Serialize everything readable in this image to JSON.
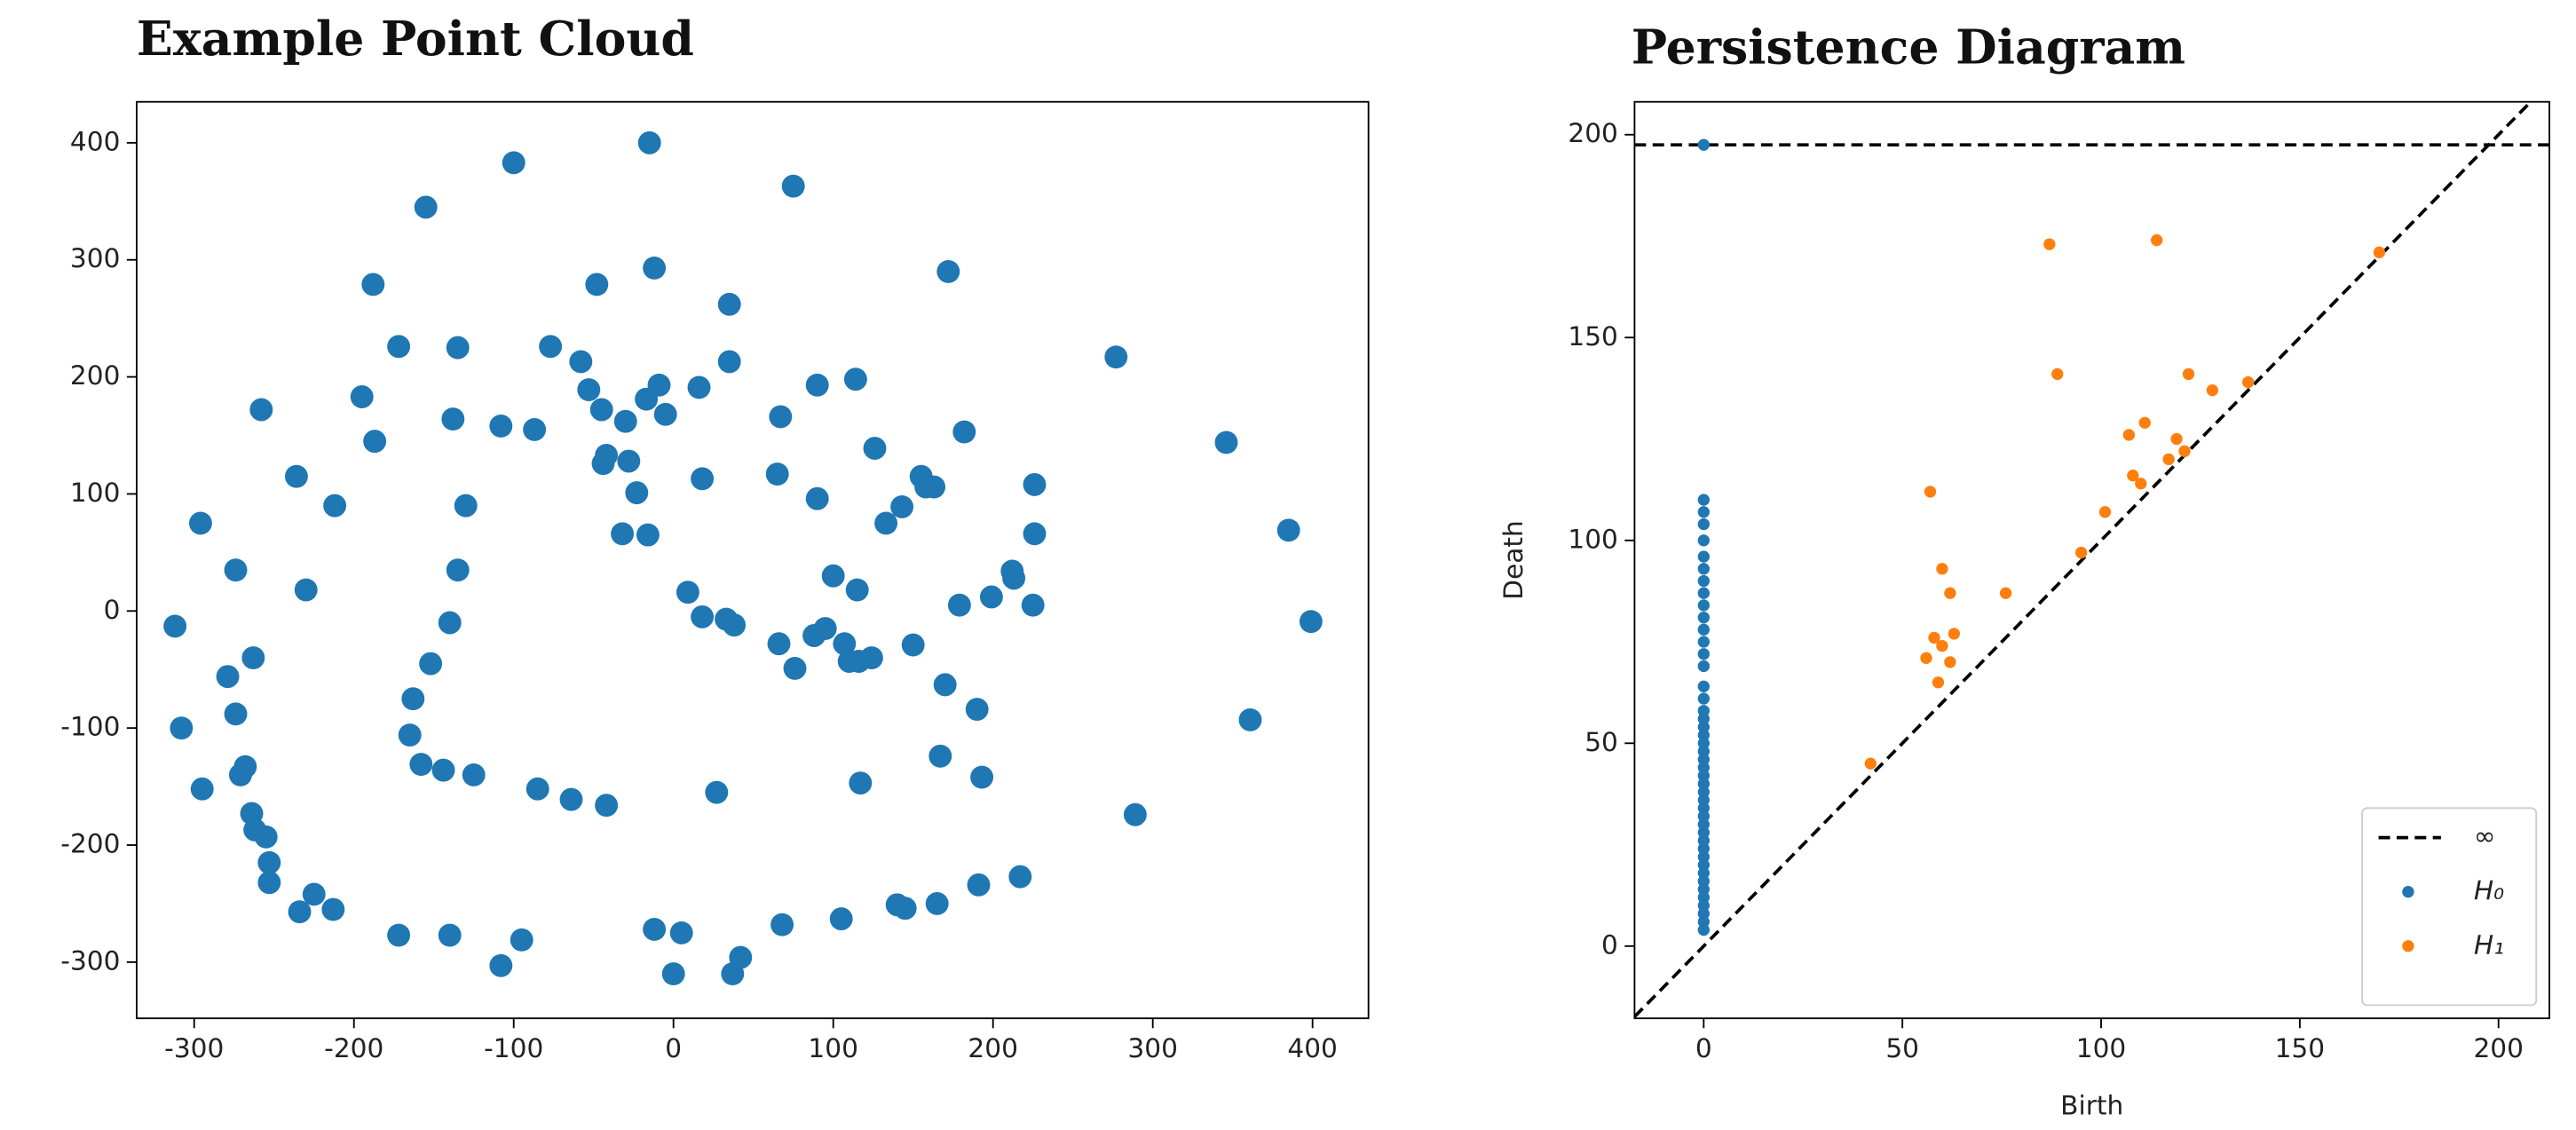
{
  "chart_data": [
    {
      "type": "scatter",
      "title": "Example Point Cloud",
      "color": "#1f77b4",
      "xlim": [
        -336,
        435
      ],
      "ylim": [
        -348,
        435
      ],
      "xticks": [
        -300,
        -200,
        -100,
        0,
        100,
        200,
        300,
        400
      ],
      "yticks": [
        -300,
        -200,
        -100,
        0,
        100,
        200,
        300,
        400
      ],
      "x": [
        -296,
        -312,
        -308,
        -295,
        -274,
        -279,
        -274,
        -271,
        -268,
        -264,
        -262,
        -255,
        -253,
        -253,
        -263,
        -258,
        -236,
        -230,
        -225,
        -234,
        -213,
        -212,
        -195,
        -187,
        -188,
        -172,
        -172,
        -155,
        -165,
        -163,
        -158,
        -152,
        -144,
        -140,
        -138,
        -135,
        -135,
        -130,
        -140,
        -125,
        -108,
        -108,
        -100,
        -95,
        -87,
        -85,
        -77,
        -64,
        -58,
        -53,
        -48,
        -45,
        -44,
        -42,
        -42,
        -32,
        -30,
        -28,
        -23,
        -15,
        -17,
        -16,
        -12,
        -9,
        -12,
        -5,
        0,
        5,
        9,
        16,
        18,
        18,
        27,
        33,
        35,
        35,
        38,
        37,
        42,
        65,
        66,
        67,
        68,
        75,
        76,
        88,
        90,
        90,
        95,
        100,
        105,
        107,
        110,
        114,
        115,
        116,
        117,
        124,
        126,
        133,
        140,
        143,
        145,
        150,
        155,
        158,
        163,
        165,
        167,
        170,
        172,
        179,
        182,
        190,
        191,
        193,
        199,
        212,
        213,
        217,
        226,
        226,
        225,
        277,
        289,
        346,
        361,
        385,
        399
      ],
      "values": [
        75,
        -13,
        -100,
        -152,
        35,
        -56,
        -88,
        -140,
        -133,
        -173,
        -187,
        -193,
        -215,
        -232,
        -40,
        172,
        115,
        18,
        -242,
        -257,
        -255,
        90,
        183,
        145,
        279,
        226,
        -277,
        345,
        -106,
        -75,
        -131,
        -45,
        -136,
        -10,
        164,
        35,
        225,
        90,
        -277,
        -140,
        158,
        -303,
        383,
        -281,
        155,
        -152,
        226,
        -161,
        213,
        189,
        279,
        172,
        126,
        133,
        -166,
        66,
        162,
        128,
        101,
        400,
        181,
        65,
        293,
        193,
        -272,
        168,
        -310,
        -275,
        16,
        191,
        113,
        -5,
        -155,
        -7,
        213,
        262,
        -12,
        -310,
        -296,
        117,
        -28,
        166,
        -268,
        363,
        -49,
        -21,
        96,
        193,
        -15,
        30,
        -263,
        -28,
        -43,
        198,
        18,
        -43,
        -147,
        -40,
        139,
        75,
        -251,
        89,
        -254,
        -29,
        115,
        106,
        106,
        -250,
        -124,
        -63,
        290,
        5,
        153,
        -84,
        -234,
        -142,
        12,
        34,
        28,
        -227,
        108,
        66,
        5,
        217,
        -174,
        144,
        -93,
        69,
        -9
      ]
    },
    {
      "type": "scatter",
      "title": "Persistence Diagram",
      "xlabel": "Birth",
      "ylabel": "Death",
      "xlim": [
        -17.4,
        212.8
      ],
      "ylim": [
        -17.8,
        208.1
      ],
      "xticks": [
        0,
        50,
        100,
        150,
        200
      ],
      "yticks": [
        0,
        50,
        100,
        150,
        200
      ],
      "legend": "lower right",
      "diagonal": true,
      "series": [
        {
          "name": "∞",
          "color": "#000000",
          "style": "dashed",
          "values": [
            197.5
          ]
        },
        {
          "name": "H₀",
          "color": "#1f77b4",
          "x": [
            0,
            0,
            0,
            0,
            0,
            0,
            0,
            0,
            0,
            0,
            0,
            0,
            0,
            0,
            0,
            0,
            0,
            0,
            0,
            0,
            0,
            0,
            0,
            0,
            0,
            0,
            0,
            0,
            0,
            0,
            0,
            0,
            0,
            0,
            0,
            0,
            0,
            0,
            0,
            0,
            0,
            0,
            0,
            0,
            0
          ],
          "values": [
            197.5,
            110,
            107,
            104,
            100,
            96,
            93,
            90,
            87,
            84,
            81,
            78,
            75,
            72,
            69,
            64,
            61,
            58,
            56,
            54,
            52,
            50,
            48,
            46,
            44,
            42,
            40,
            38,
            36,
            34,
            32,
            30,
            28,
            26,
            24,
            22,
            20,
            18,
            16,
            14,
            12,
            10,
            8,
            6,
            4
          ]
        },
        {
          "name": "H₁",
          "color": "#ff7f0e",
          "x": [
            42,
            56,
            57,
            58,
            59,
            60,
            60,
            62,
            62,
            63,
            76,
            87,
            89,
            95,
            101,
            107,
            108,
            110,
            111,
            114,
            117,
            119,
            121,
            122,
            128,
            137,
            170
          ],
          "values": [
            45,
            71,
            112,
            76,
            65,
            93,
            74,
            70,
            87,
            77,
            87,
            173,
            141,
            97,
            107,
            126,
            116,
            114,
            129,
            174,
            120,
            125,
            122,
            141,
            137,
            139,
            171
          ]
        }
      ]
    }
  ]
}
